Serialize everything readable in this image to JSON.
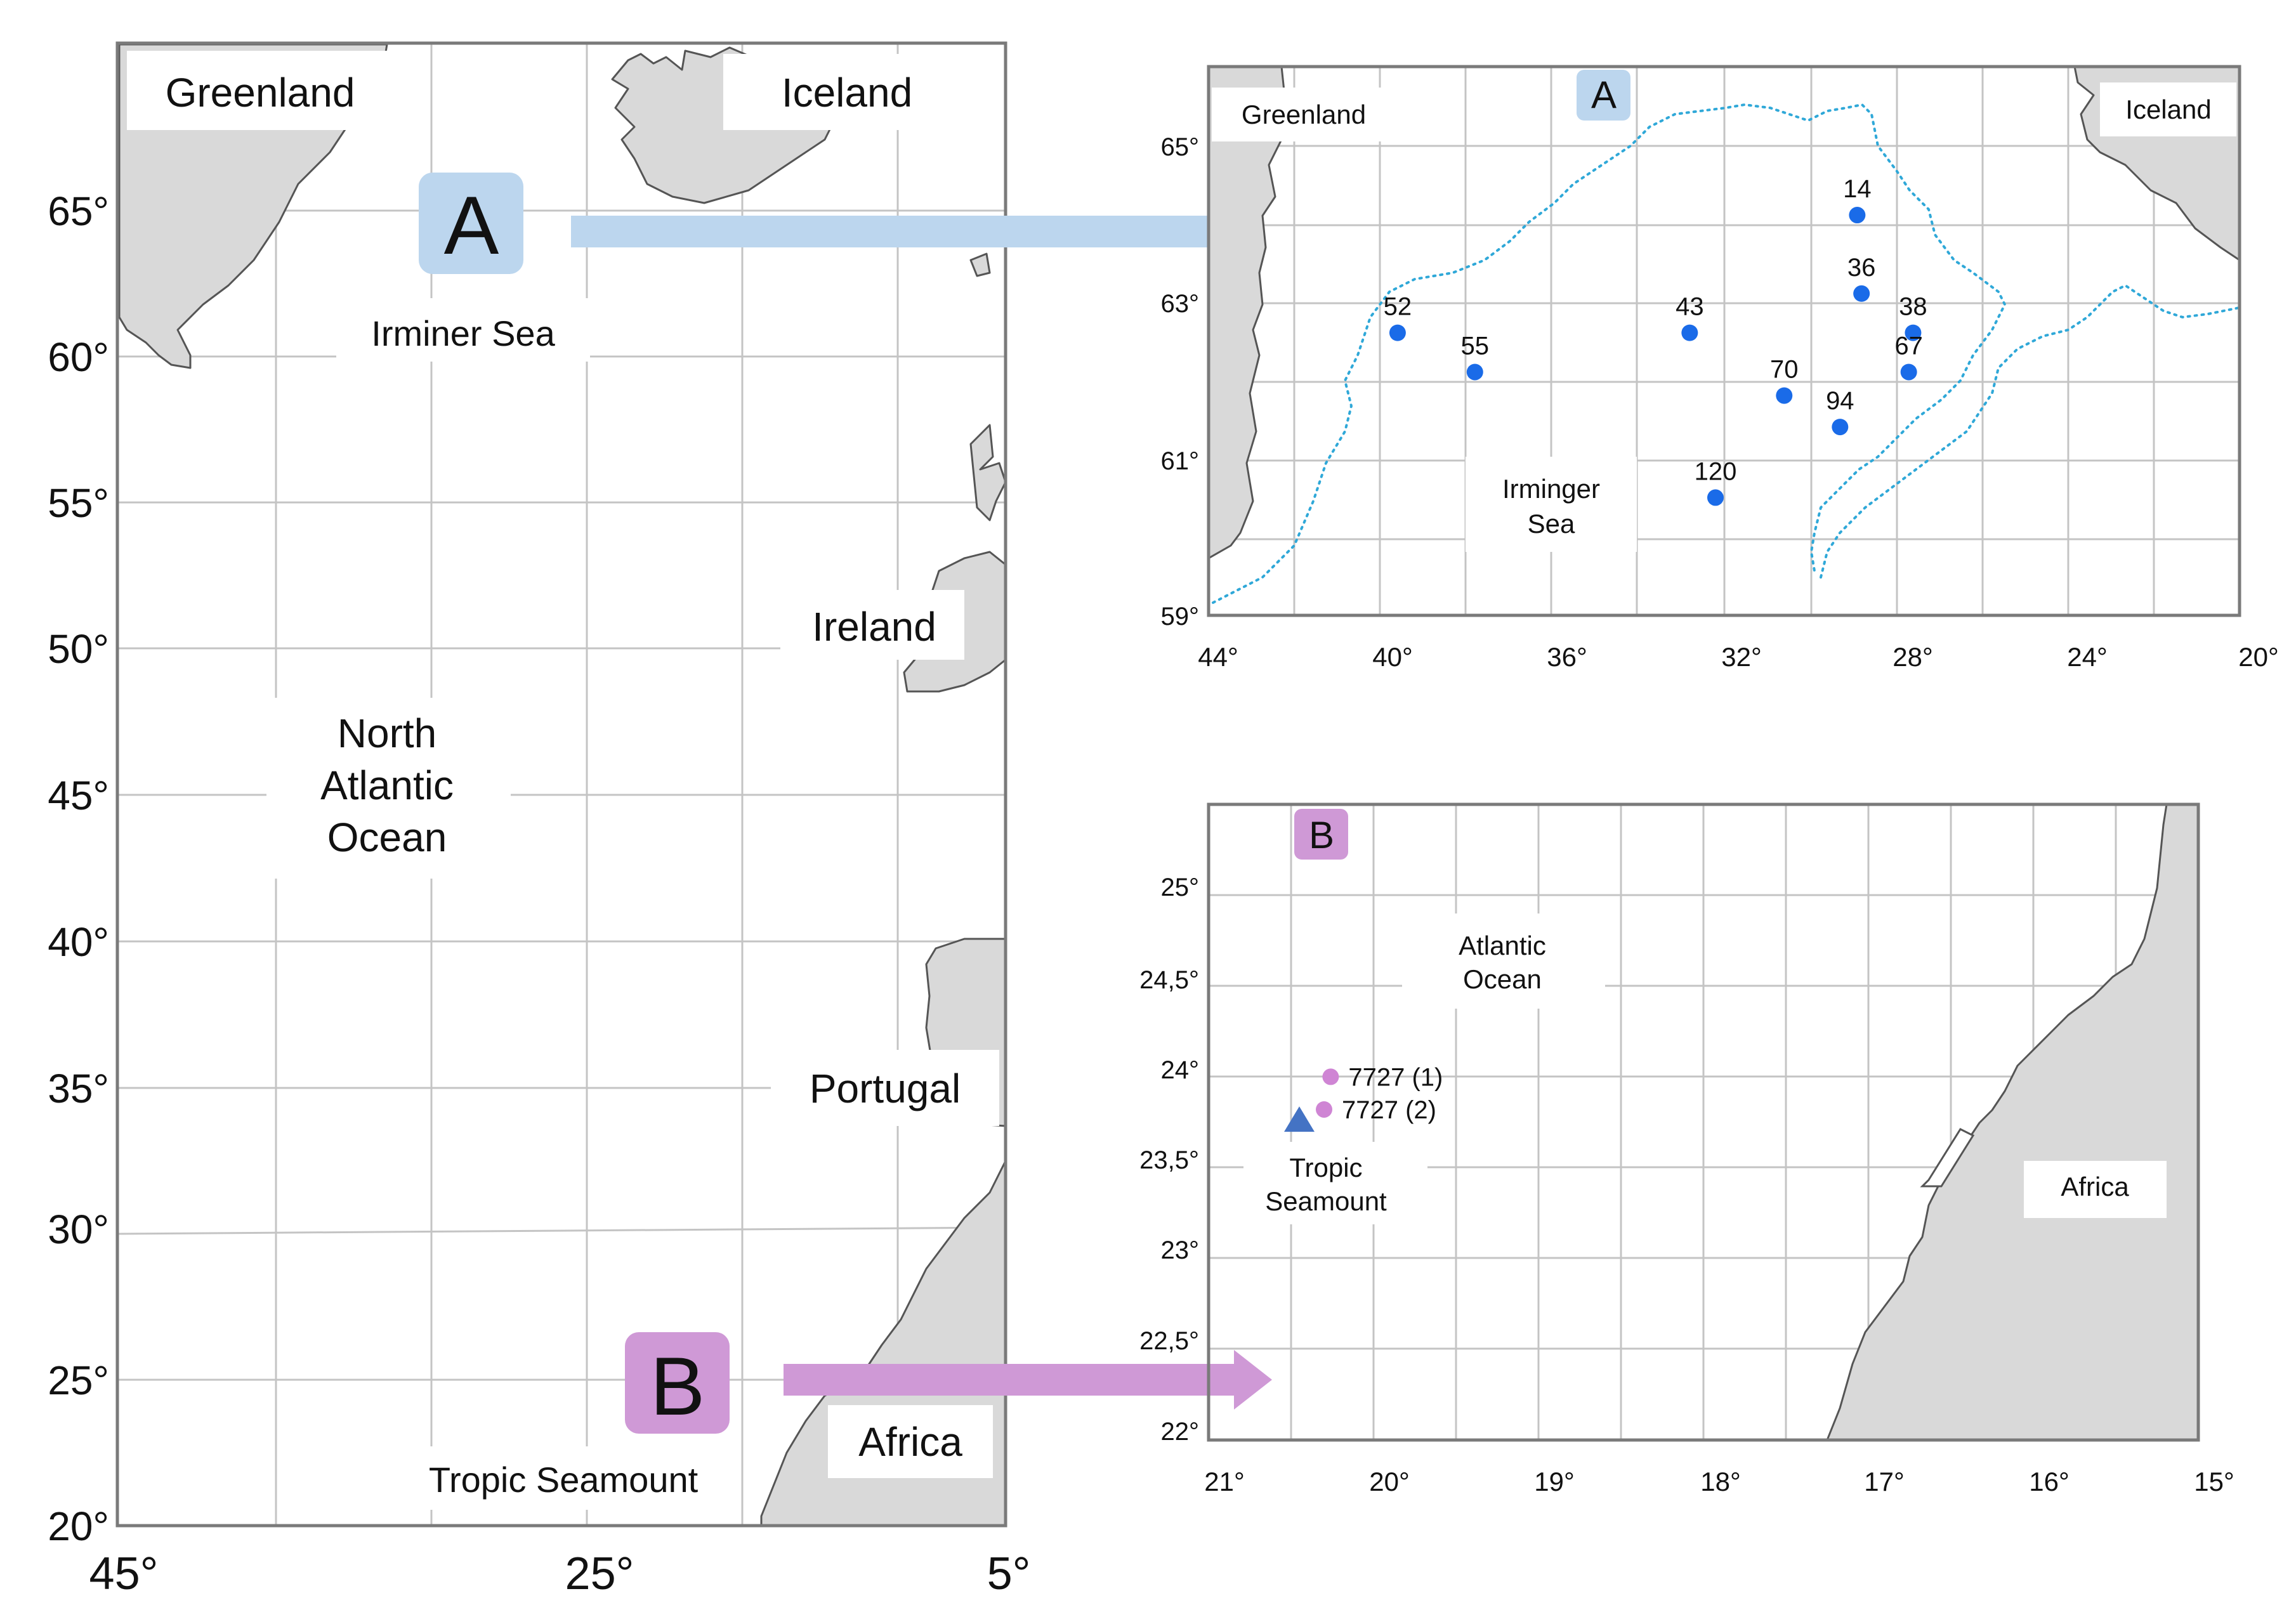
{
  "overview_map": {
    "y_ticks": [
      "65°",
      "60°",
      "55°",
      "50°",
      "45°",
      "40°",
      "35°",
      "30°",
      "25°",
      "20°"
    ],
    "x_ticks": [
      "45°",
      "25°",
      "5°"
    ],
    "labels": {
      "greenland": "Greenland",
      "iceland": "Iceland",
      "irminer_sea": "Irminer Sea",
      "ireland": "Ireland",
      "ocean_line1": "North",
      "ocean_line2": "Atlantic",
      "ocean_line3": "Ocean",
      "portugal": "Portugal",
      "africa": "Africa",
      "tropic_seamount": "Tropic Seamount"
    },
    "badges": {
      "a": "A",
      "b": "B"
    },
    "colors": {
      "a_accent": "#bcd6ee",
      "b_accent": "#cf99d6"
    }
  },
  "inset_a": {
    "badge": "A",
    "y_ticks": [
      "65°",
      "63°",
      "61°",
      "59°"
    ],
    "x_ticks": [
      "44°",
      "40°",
      "36°",
      "32°",
      "28°",
      "24°",
      "20°"
    ],
    "labels": {
      "greenland": "Greenland",
      "iceland": "Iceland",
      "sea_line1": "Irminger",
      "sea_line2": "Sea"
    },
    "stations": [
      {
        "id": "14",
        "lon": -28.9,
        "lat": 64.1
      },
      {
        "id": "36",
        "lon": -28.8,
        "lat": 63.1
      },
      {
        "id": "38",
        "lon": -27.6,
        "lat": 62.6
      },
      {
        "id": "67",
        "lon": -27.7,
        "lat": 62.1
      },
      {
        "id": "43",
        "lon": -32.8,
        "lat": 62.6
      },
      {
        "id": "52",
        "lon": -39.6,
        "lat": 62.6
      },
      {
        "id": "55",
        "lon": -37.8,
        "lat": 62.1
      },
      {
        "id": "70",
        "lon": -30.6,
        "lat": 61.8
      },
      {
        "id": "94",
        "lon": -29.3,
        "lat": 61.4
      },
      {
        "id": "120",
        "lon": -32.2,
        "lat": 60.5
      }
    ],
    "marker_color": "#1a6be8"
  },
  "inset_b": {
    "badge": "B",
    "y_ticks": [
      "25°",
      "24,5°",
      "24°",
      "23,5°",
      "23°",
      "22,5°",
      "22°"
    ],
    "x_ticks": [
      "21°",
      "20°",
      "19°",
      "18°",
      "17°",
      "16°",
      "15°"
    ],
    "labels": {
      "ocean_line1": "Atlantic",
      "ocean_line2": "Ocean",
      "seamount_line1": "Tropic",
      "seamount_line2": "Seamount",
      "africa": "Africa"
    },
    "stations": [
      {
        "id": "7727 (1)",
        "lon": -20.26,
        "lat": 24.0
      },
      {
        "id": "7727 (2)",
        "lon": -20.3,
        "lat": 23.82
      }
    ],
    "seamount": {
      "lon": -20.45,
      "lat": 23.76
    },
    "colors": {
      "station": "#cf85d4",
      "seamount": "#4473c4"
    }
  }
}
